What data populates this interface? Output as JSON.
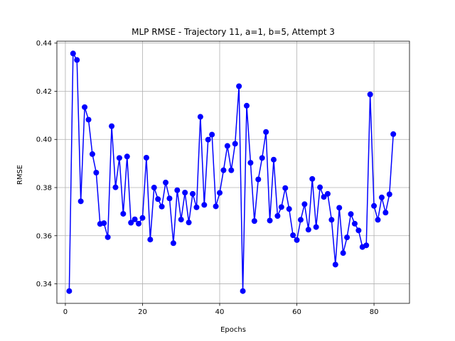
{
  "chart_data": {
    "type": "line",
    "title": "MLP RMSE - Trajectory 11, a=1, b=5, Attempt 3",
    "xlabel": "Epochs",
    "ylabel": "RMSE",
    "xlim": [
      -2.2,
      89.2
    ],
    "ylim": [
      0.3319,
      0.4408
    ],
    "xticks": [
      0,
      20,
      40,
      60,
      80
    ],
    "xtick_labels": [
      "0",
      "20",
      "40",
      "60",
      "80"
    ],
    "yticks": [
      0.34,
      0.36,
      0.38,
      0.4,
      0.42,
      0.44
    ],
    "ytick_labels": [
      "0.34",
      "0.36",
      "0.38",
      "0.40",
      "0.42",
      "0.44"
    ],
    "grid": true,
    "line_color": "#0000ff",
    "marker": "circle",
    "series": [
      {
        "x": [
          1,
          2,
          3,
          4,
          5,
          6,
          7,
          8,
          9,
          10,
          11,
          12,
          13,
          14,
          15,
          16,
          17,
          18,
          19,
          20,
          21,
          22,
          23,
          24,
          25,
          26,
          27,
          28,
          29,
          30,
          31,
          32,
          33,
          34,
          35,
          36,
          37,
          38,
          39,
          40,
          41,
          42,
          43,
          44,
          45,
          46,
          47,
          48,
          49,
          50,
          51,
          52,
          53,
          54,
          55,
          56,
          57,
          58,
          59,
          60,
          61,
          62,
          63,
          64,
          65,
          66,
          67,
          68,
          69,
          70,
          71,
          72,
          73,
          74,
          75,
          76,
          77,
          78,
          79,
          80,
          81,
          82,
          83,
          84,
          85
        ],
        "values": [
          0.337,
          0.4357,
          0.433,
          0.3743,
          0.4134,
          0.4082,
          0.3939,
          0.3862,
          0.3649,
          0.3652,
          0.3594,
          0.4055,
          0.3801,
          0.3923,
          0.3691,
          0.3929,
          0.3654,
          0.3668,
          0.365,
          0.3674,
          0.3924,
          0.3584,
          0.38,
          0.3752,
          0.3721,
          0.3821,
          0.3755,
          0.3569,
          0.3789,
          0.3667,
          0.3779,
          0.3655,
          0.3774,
          0.3718,
          0.4094,
          0.3728,
          0.3999,
          0.402,
          0.3722,
          0.3778,
          0.3872,
          0.3973,
          0.3872,
          0.3982,
          0.4221,
          0.337,
          0.414,
          0.3903,
          0.3661,
          0.3834,
          0.3923,
          0.4031,
          0.3663,
          0.3916,
          0.3682,
          0.3719,
          0.3798,
          0.3711,
          0.3602,
          0.3582,
          0.3666,
          0.3731,
          0.3625,
          0.3836,
          0.3636,
          0.3801,
          0.3761,
          0.3774,
          0.3666,
          0.348,
          0.3716,
          0.3528,
          0.3593,
          0.369,
          0.365,
          0.3622,
          0.3553,
          0.356,
          0.4187,
          0.3724,
          0.3666,
          0.3759,
          0.3696,
          0.3772,
          0.4022
        ]
      }
    ]
  }
}
